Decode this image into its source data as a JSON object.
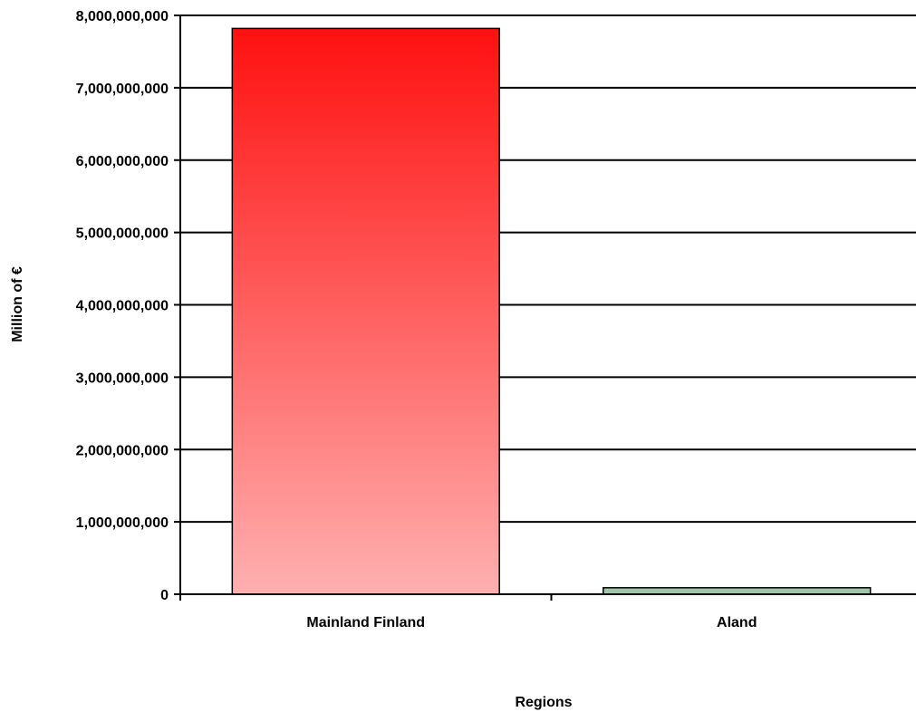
{
  "chart_data": {
    "type": "bar",
    "title": "",
    "xlabel": "Regions",
    "ylabel": "Million of €",
    "categories": [
      "Mainland Finland",
      "Aland"
    ],
    "values": [
      7820000000,
      90000000
    ],
    "ylim": [
      0,
      8000000000
    ],
    "yticks": [
      0,
      1000000000,
      2000000000,
      3000000000,
      4000000000,
      5000000000,
      6000000000,
      7000000000,
      8000000000
    ],
    "ytick_labels": [
      "0",
      "1,000,000,000",
      "2,000,000,000",
      "3,000,000,000",
      "4,000,000,000",
      "5,000,000,000",
      "6,000,000,000",
      "7,000,000,000",
      "8,000,000,000"
    ],
    "grid": true,
    "legend": "none",
    "colors": {
      "bar_top": "#ff1010",
      "bar_bottom": "#ffb0b0",
      "aland_bar": "#9fc6a8",
      "grid": "#000000"
    }
  }
}
